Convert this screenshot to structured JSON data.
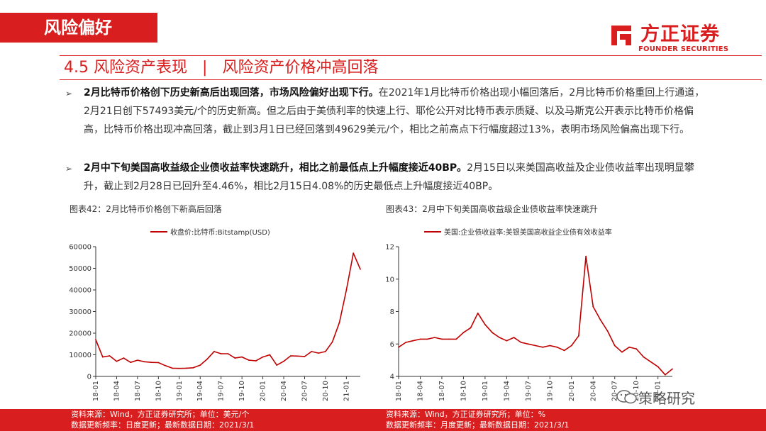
{
  "header": {
    "section_tag": "风险偏好",
    "brand_cn": "方正证券",
    "brand_en": "FOUNDER SECURITIES"
  },
  "heading": {
    "number": "4.5",
    "title": "风险资产表现",
    "separator": "|",
    "subtitle": "风险资产价格冲高回落"
  },
  "bullets": [
    {
      "marker": "➢",
      "bold": "2月比特币价格创下历史新高后出现回落，市场风险偏好出现下行。",
      "text": "在2021年1月比特币价格出现小幅回落后，2月比特币价格重回上行通道，2月21日创下57493美元/个的历史新高。但之后由于美债利率的快速上行、耶伦公开对比特币表示质疑、以及马斯克公开表示比特币价格偏高，比特币价格出现冲高回落，截止到3月1日已经回落到49629美元/个，相比之前高点下行幅度超过13%，表明市场风险偏高出现下行。"
    },
    {
      "marker": "➢",
      "bold": "2月中下旬美国高收益级企业债收益率快速跳升，相比之前最低点上升幅度接近40BP。",
      "text": "2月15日以来美国高收益及企业债收益率出现明显攀升，截止到2月28日已回升至4.46%，相比2月15日4.08%的历史最低点上升幅度接近40BP。"
    }
  ],
  "figures": [
    {
      "title": "图表42：2月比特币价格创下新高后回落",
      "legend": "收盘价:比特币:Bitstamp(USD)",
      "source": "资料来源：Wind，方正证券研究所；单位：美元/个",
      "update": "数据更新频率：日度更新；最新数据日期：2021/3/1"
    },
    {
      "title": "图表43：2月中下旬美国高收益级企业债收益率快速跳升",
      "legend": "美国:企业债收益率:美银美国高收益企业债有效收益率",
      "source": "资料来源：Wind，方正证券研究所；单位：%",
      "update": "数据更新频率：月度更新；最新数据日期：2021/3/1"
    }
  ],
  "watermark": "策略研究",
  "colors": {
    "accent": "#d81e1e",
    "line": "#c00000",
    "footer_text": "#ffffff"
  },
  "chart_data": [
    {
      "type": "line",
      "title": "",
      "series": [
        {
          "name": "收盘价:比特币:Bitstamp(USD)",
          "x": [
            "2018-01",
            "2018-02",
            "2018-03",
            "2018-04",
            "2018-05",
            "2018-06",
            "2018-07",
            "2018-08",
            "2018-09",
            "2018-10",
            "2018-11",
            "2018-12",
            "2019-01",
            "2019-02",
            "2019-03",
            "2019-04",
            "2019-05",
            "2019-06",
            "2019-07",
            "2019-08",
            "2019-09",
            "2019-10",
            "2019-11",
            "2019-12",
            "2020-01",
            "2020-02",
            "2020-03",
            "2020-04",
            "2020-05",
            "2020-06",
            "2020-07",
            "2020-08",
            "2020-09",
            "2020-10",
            "2020-11",
            "2020-12",
            "2021-01",
            "2021-02",
            "2021-03"
          ],
          "values": [
            17000,
            9000,
            9500,
            7000,
            8500,
            6500,
            7500,
            6800,
            6500,
            6400,
            5000,
            3800,
            3700,
            3800,
            4000,
            5200,
            8000,
            11500,
            10500,
            10500,
            8500,
            9000,
            7500,
            7200,
            9000,
            10000,
            5200,
            7000,
            9500,
            9400,
            9200,
            11500,
            10800,
            11500,
            16000,
            25000,
            40000,
            57000,
            49600
          ]
        }
      ],
      "xlabel": "",
      "ylabel": "",
      "x_ticks": [
        "18-01",
        "18-04",
        "18-07",
        "18-10",
        "19-01",
        "19-04",
        "19-07",
        "19-10",
        "20-01",
        "20-04",
        "20-07",
        "20-10",
        "21-01"
      ],
      "y_ticks": [
        0,
        10000,
        20000,
        30000,
        40000,
        50000,
        60000
      ],
      "ylim": [
        0,
        60000
      ],
      "grid": false,
      "legend_position": "top"
    },
    {
      "type": "line",
      "title": "",
      "series": [
        {
          "name": "美国:企业债收益率:美银美国高收益企业债有效收益率",
          "x": [
            "2018-01",
            "2018-02",
            "2018-03",
            "2018-04",
            "2018-05",
            "2018-06",
            "2018-07",
            "2018-08",
            "2018-09",
            "2018-10",
            "2018-11",
            "2018-12",
            "2019-01",
            "2019-02",
            "2019-03",
            "2019-04",
            "2019-05",
            "2019-06",
            "2019-07",
            "2019-08",
            "2019-09",
            "2019-10",
            "2019-11",
            "2019-12",
            "2020-01",
            "2020-02",
            "2020-03",
            "2020-04",
            "2020-05",
            "2020-06",
            "2020-07",
            "2020-08",
            "2020-09",
            "2020-10",
            "2020-11",
            "2020-12",
            "2021-01",
            "2021-02",
            "2021-03"
          ],
          "values": [
            5.8,
            6.1,
            6.2,
            6.3,
            6.3,
            6.4,
            6.3,
            6.3,
            6.3,
            6.7,
            7.0,
            7.9,
            7.2,
            6.7,
            6.4,
            6.2,
            6.4,
            6.1,
            6.0,
            5.9,
            5.8,
            5.9,
            5.8,
            5.6,
            5.9,
            6.5,
            11.4,
            8.3,
            7.5,
            6.8,
            5.9,
            5.5,
            5.8,
            5.7,
            5.2,
            4.9,
            4.6,
            4.1,
            4.46
          ]
        }
      ],
      "xlabel": "",
      "ylabel": "",
      "x_ticks": [
        "18-01",
        "18-04",
        "18-07",
        "18-10",
        "19-01",
        "19-04",
        "19-07",
        "19-10",
        "20-01",
        "20-04",
        "20-07",
        "20-10",
        "21-01"
      ],
      "y_ticks": [
        4,
        6,
        8,
        10,
        12
      ],
      "ylim": [
        4,
        12
      ],
      "grid": false,
      "legend_position": "top"
    }
  ]
}
